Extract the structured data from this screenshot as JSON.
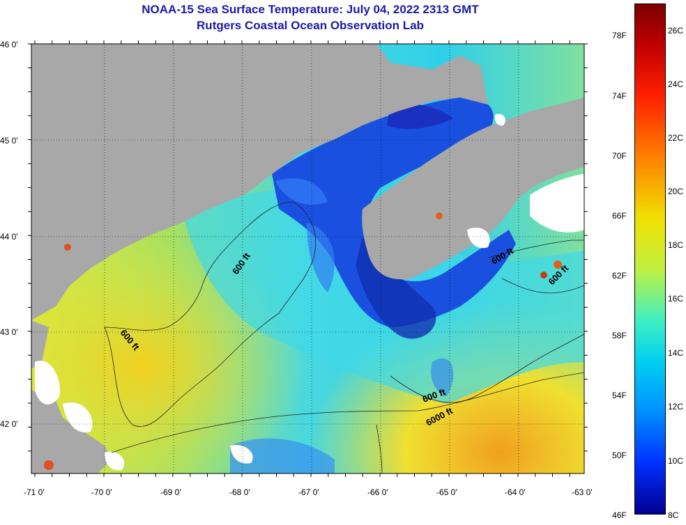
{
  "title": {
    "line1": "NOAA-15 Sea Surface Temperature:  July 04, 2022 2313 GMT",
    "line2": "Rutgers Coastal Ocean Observation Lab"
  },
  "lat_labels": [
    "46 0'",
    "45 0'",
    "44 0'",
    "43 0'",
    "42 0'"
  ],
  "lon_labels": [
    "-71 0'",
    "-70 0'",
    "-69 0'",
    "-68 0'",
    "-67 0'",
    "-66 0'",
    "-65 0'",
    "-64 0'",
    "-63 0'"
  ],
  "contour_labels": [
    "600 ft",
    "600 ft",
    "600 ft",
    "600 ft",
    "600 ft",
    "6000 ft"
  ],
  "colorbar": {
    "fahrenheit": [
      "78F",
      "74F",
      "70F",
      "66F",
      "62F",
      "58F",
      "54F",
      "50F",
      "46F"
    ],
    "celsius": [
      "26C",
      "24C",
      "22C",
      "20C",
      "18C",
      "16C",
      "14C",
      "12C",
      "10C",
      "8C"
    ]
  },
  "colors": {
    "title": "#1a1aa6",
    "land": "#a8a8a8",
    "cloud": "#ffffff"
  }
}
